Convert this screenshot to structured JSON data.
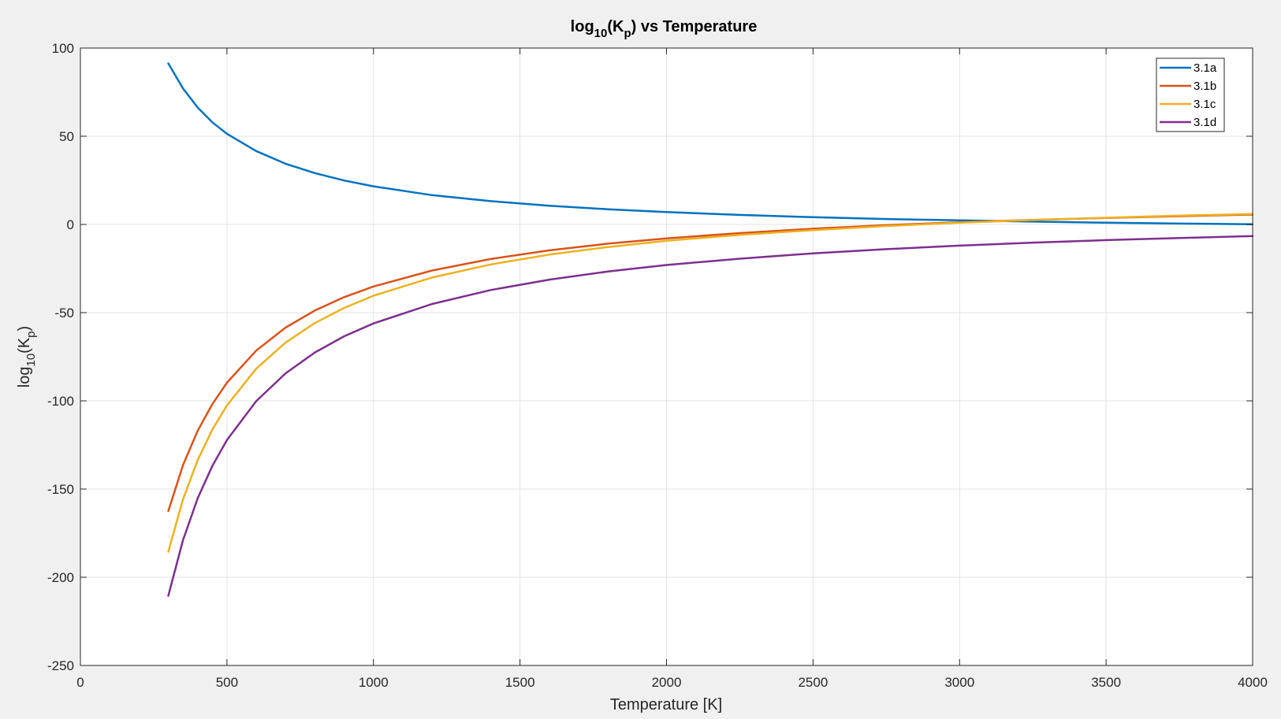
{
  "chart_data": {
    "type": "line",
    "title": {
      "prefix": "log",
      "sub1": "10",
      "mid": "(K",
      "sub2": "p",
      "suffix": ") vs Temperature"
    },
    "xlabel": "Temperature [K]",
    "ylabel": {
      "prefix": "log",
      "sub1": "10",
      "mid": "(K",
      "sub2": "p",
      "suffix": ")"
    },
    "xlim": [
      0,
      4000
    ],
    "ylim": [
      -250,
      100
    ],
    "xticks": [
      0,
      500,
      1000,
      1500,
      2000,
      2500,
      3000,
      3500,
      4000
    ],
    "yticks": [
      -250,
      -200,
      -150,
      -100,
      -50,
      0,
      50,
      100
    ],
    "grid": true,
    "legend_position": "top-right",
    "x": [
      300,
      350,
      400,
      450,
      500,
      600,
      700,
      800,
      900,
      1000,
      1200,
      1400,
      1600,
      1800,
      2000,
      2250,
      2500,
      2750,
      3000,
      3250,
      3500,
      3750,
      4000
    ],
    "series": [
      {
        "name": "3.1a",
        "color": "#0072BD",
        "values": [
          91.3,
          77.1,
          66.3,
          57.9,
          51.4,
          41.6,
          34.4,
          29.1,
          24.9,
          21.6,
          16.6,
          13.2,
          10.6,
          8.6,
          7.0,
          5.4,
          4.1,
          3.1,
          2.3,
          1.6,
          1.0,
          0.5,
          0.1
        ]
      },
      {
        "name": "3.1b",
        "color": "#D95319",
        "values": [
          -162.5,
          -136.5,
          -117.0,
          -101.9,
          -89.7,
          -71.5,
          -58.5,
          -48.8,
          -41.2,
          -35.2,
          -26.1,
          -19.6,
          -14.7,
          -10.9,
          -7.9,
          -4.9,
          -2.4,
          -0.4,
          1.2,
          2.6,
          3.7,
          4.7,
          5.6
        ]
      },
      {
        "name": "3.1c",
        "color": "#EDB120",
        "values": [
          -185.5,
          -155.9,
          -133.6,
          -116.4,
          -102.6,
          -81.8,
          -67.0,
          -55.9,
          -47.3,
          -40.4,
          -30.1,
          -22.7,
          -17.1,
          -12.8,
          -9.3,
          -5.9,
          -3.2,
          -0.9,
          1.0,
          2.5,
          3.8,
          5.0,
          5.9
        ]
      },
      {
        "name": "3.1d",
        "color": "#7E2F8E",
        "values": [
          -210.5,
          -179.0,
          -155.3,
          -136.9,
          -122.2,
          -100.2,
          -84.4,
          -72.6,
          -63.4,
          -56.1,
          -45.1,
          -37.2,
          -31.3,
          -26.7,
          -23.0,
          -19.4,
          -16.4,
          -14.0,
          -12.0,
          -10.3,
          -8.9,
          -7.7,
          -6.6
        ]
      }
    ]
  }
}
